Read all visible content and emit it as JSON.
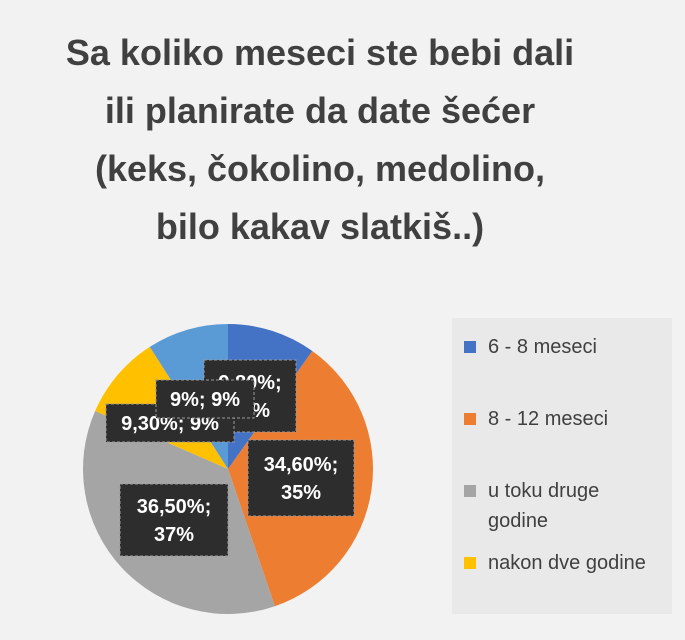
{
  "chart_data": {
    "type": "pie",
    "title": "Sa koliko meseci ste bebi dali ili planirate da date šećer (keks, čokolino, medolino, bilo kakav slatkiš..)",
    "categories": [
      "6 - 8 meseci",
      "8 - 12 meseci",
      "u toku druge godine",
      "nakon dve godine",
      ""
    ],
    "values": [
      9.8,
      34.6,
      36.5,
      9.3,
      9.0
    ],
    "colors": [
      "#4472c4",
      "#ed7d31",
      "#a5a5a5",
      "#ffc000",
      "#5b9bd5"
    ],
    "data_labels": [
      [
        "9,80%;",
        "10%"
      ],
      [
        "34,60%;",
        "35%"
      ],
      [
        "36,50%;",
        "37%"
      ],
      [
        "9,30%; 9%"
      ],
      [
        "9%; 9%"
      ]
    ],
    "legend_position": "right"
  },
  "legend": {
    "items": [
      {
        "label_lines": [
          "6 - 8 meseci"
        ],
        "color": "#4472c4"
      },
      {
        "label_lines": [
          "8 - 12 meseci"
        ],
        "color": "#ed7d31"
      },
      {
        "label_lines": [
          "u toku druge",
          "godine"
        ],
        "color": "#a5a5a5"
      },
      {
        "label_lines": [
          "nakon dve godine"
        ],
        "color": "#ffc000"
      }
    ]
  }
}
